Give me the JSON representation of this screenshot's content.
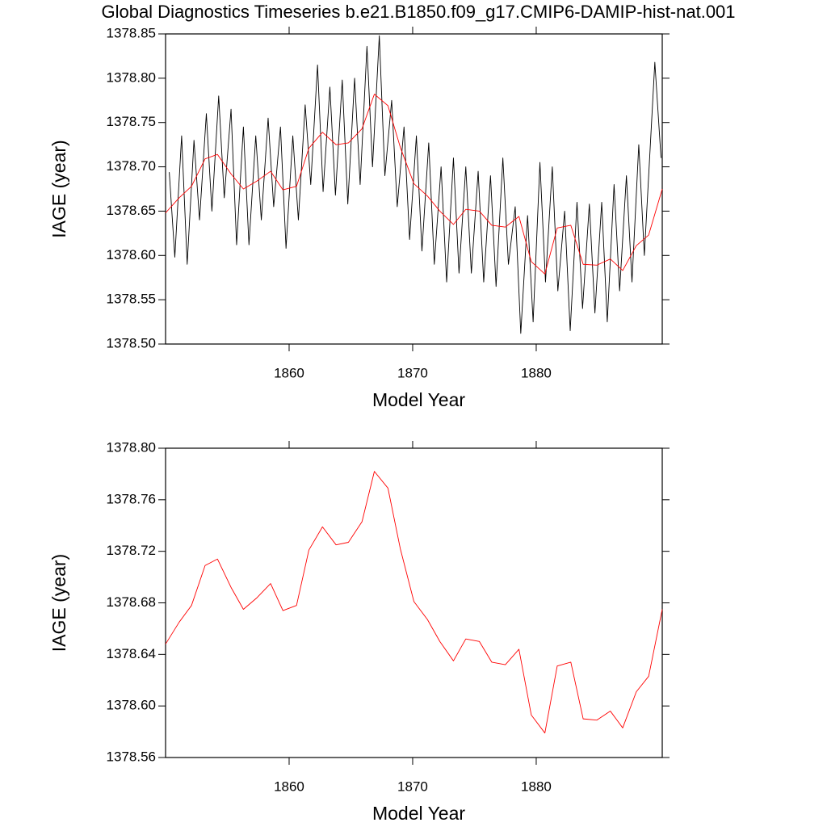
{
  "chart_data": [
    {
      "type": "line",
      "title": "Global Diagnostics Timeseries b.e21.B1850.f09_g17.CMIP6-DAMIP-hist-nat.001",
      "xlabel": "Model Year",
      "ylabel": "IAGE (year)",
      "xlim": [
        1850,
        1890.2
      ],
      "xticks": [
        1860,
        1870,
        1880
      ],
      "ylim": [
        1378.5,
        1378.85
      ],
      "yticks": [
        {
          "value": 1378.5,
          "label": "1378.50"
        },
        1378.55,
        {
          "value": 1378.6,
          "label": "1378.60"
        },
        1378.65,
        {
          "value": 1378.7,
          "label": "1378.70"
        },
        1378.75,
        {
          "value": 1378.8,
          "label": "1378.80"
        },
        1378.85
      ],
      "series": [
        {
          "color": "#000000",
          "x": [
            1850.3,
            1850.75,
            1851.3,
            1851.75,
            1852.3,
            1852.75,
            1853.3,
            1853.75,
            1854.3,
            1854.75,
            1855.3,
            1855.75,
            1856.3,
            1856.75,
            1857.3,
            1857.75,
            1858.3,
            1858.75,
            1859.3,
            1859.75,
            1860.3,
            1860.75,
            1861.3,
            1861.75,
            1862.3,
            1862.75,
            1863.3,
            1863.75,
            1864.3,
            1864.75,
            1865.3,
            1865.75,
            1866.3,
            1866.75,
            1867.3,
            1867.75,
            1868.3,
            1868.75,
            1869.3,
            1869.75,
            1870.3,
            1870.75,
            1871.3,
            1871.75,
            1872.3,
            1872.75,
            1873.3,
            1873.75,
            1874.3,
            1874.75,
            1875.3,
            1875.75,
            1876.3,
            1876.75,
            1877.3,
            1877.75,
            1878.3,
            1878.75,
            1879.3,
            1879.75,
            1880.3,
            1880.75,
            1881.3,
            1881.75,
            1882.3,
            1882.75,
            1883.3,
            1883.75,
            1884.3,
            1884.75,
            1885.3,
            1885.75,
            1886.3,
            1886.75,
            1887.3,
            1887.75,
            1888.3,
            1888.75,
            1889.6,
            1890.1
          ],
          "values": [
            1378.694,
            1378.598,
            1378.735,
            1378.59,
            1378.73,
            1378.64,
            1378.76,
            1378.65,
            1378.78,
            1378.665,
            1378.765,
            1378.612,
            1378.745,
            1378.612,
            1378.735,
            1378.64,
            1378.755,
            1378.655,
            1378.745,
            1378.608,
            1378.735,
            1378.64,
            1378.77,
            1378.68,
            1378.815,
            1378.672,
            1378.79,
            1378.668,
            1378.798,
            1378.658,
            1378.8,
            1378.68,
            1378.836,
            1378.7,
            1378.848,
            1378.69,
            1378.775,
            1378.655,
            1378.745,
            1378.618,
            1378.735,
            1378.605,
            1378.727,
            1378.59,
            1378.7,
            1378.57,
            1378.71,
            1378.58,
            1378.7,
            1378.58,
            1378.695,
            1378.57,
            1378.69,
            1378.565,
            1378.71,
            1378.59,
            1378.655,
            1378.512,
            1378.645,
            1378.525,
            1378.705,
            1378.57,
            1378.7,
            1378.56,
            1378.65,
            1378.515,
            1378.66,
            1378.54,
            1378.658,
            1378.535,
            1378.66,
            1378.525,
            1378.68,
            1378.56,
            1378.69,
            1378.57,
            1378.725,
            1378.6,
            1378.818,
            1378.71
          ]
        },
        {
          "color": "#ff0000",
          "x": [
            1850.0,
            1851.1,
            1852.1,
            1853.2,
            1854.2,
            1855.3,
            1856.3,
            1857.4,
            1858.5,
            1859.5,
            1860.6,
            1861.6,
            1862.7,
            1863.8,
            1864.8,
            1865.9,
            1866.9,
            1868.0,
            1869.0,
            1870.1,
            1871.2,
            1872.2,
            1873.3,
            1874.3,
            1875.4,
            1876.4,
            1877.5,
            1878.6,
            1879.6,
            1880.7,
            1881.7,
            1882.8,
            1883.8,
            1884.9,
            1886.0,
            1887.0,
            1888.1,
            1889.1,
            1890.2
          ],
          "values": [
            1378.648,
            1378.665,
            1378.678,
            1378.709,
            1378.714,
            1378.692,
            1378.675,
            1378.684,
            1378.695,
            1378.674,
            1378.678,
            1378.721,
            1378.739,
            1378.725,
            1378.727,
            1378.743,
            1378.782,
            1378.769,
            1378.722,
            1378.681,
            1378.667,
            1378.65,
            1378.635,
            1378.652,
            1378.65,
            1378.634,
            1378.632,
            1378.644,
            1378.593,
            1378.579,
            1378.631,
            1378.634,
            1378.59,
            1378.589,
            1378.596,
            1378.583,
            1378.611,
            1378.623,
            1378.675
          ]
        }
      ]
    },
    {
      "type": "line",
      "xlabel": "Model Year",
      "ylabel": "IAGE (year)",
      "xlim": [
        1850,
        1890.2
      ],
      "xticks": [
        1860,
        1870,
        1880
      ],
      "ylim": [
        1378.56,
        1378.8
      ],
      "yticks": [
        1378.56,
        {
          "value": 1378.6,
          "label": "1378.60"
        },
        1378.64,
        1378.68,
        1378.72,
        1378.76,
        {
          "value": 1378.8,
          "label": "1378.80"
        }
      ],
      "series": [
        {
          "color": "#ff0000",
          "x": [
            1850.0,
            1851.1,
            1852.1,
            1853.2,
            1854.2,
            1855.3,
            1856.3,
            1857.4,
            1858.5,
            1859.5,
            1860.6,
            1861.6,
            1862.7,
            1863.8,
            1864.8,
            1865.9,
            1866.9,
            1868.0,
            1869.0,
            1870.1,
            1871.2,
            1872.2,
            1873.3,
            1874.3,
            1875.4,
            1876.4,
            1877.5,
            1878.6,
            1879.6,
            1880.7,
            1881.7,
            1882.8,
            1883.8,
            1884.9,
            1886.0,
            1887.0,
            1888.1,
            1889.1,
            1890.2
          ],
          "values": [
            1378.648,
            1378.665,
            1378.678,
            1378.709,
            1378.714,
            1378.692,
            1378.675,
            1378.684,
            1378.695,
            1378.674,
            1378.678,
            1378.721,
            1378.739,
            1378.725,
            1378.727,
            1378.743,
            1378.782,
            1378.769,
            1378.722,
            1378.681,
            1378.667,
            1378.65,
            1378.635,
            1378.652,
            1378.65,
            1378.634,
            1378.632,
            1378.644,
            1378.593,
            1378.579,
            1378.631,
            1378.634,
            1378.59,
            1378.589,
            1378.596,
            1378.583,
            1378.611,
            1378.623,
            1378.675
          ]
        }
      ]
    }
  ]
}
